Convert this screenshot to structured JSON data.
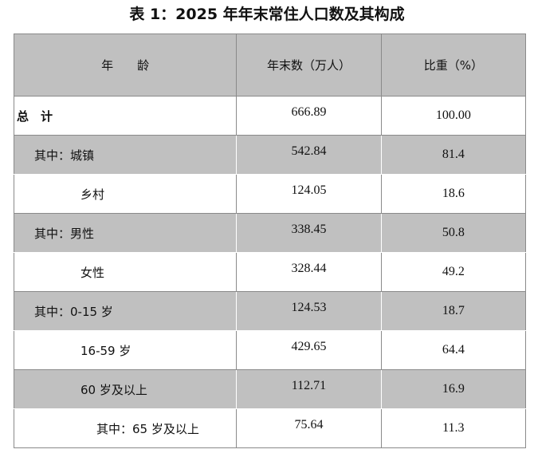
{
  "title": "表 1：2025 年年末常住人口数及其构成",
  "table": {
    "header": [
      "年　　龄",
      "年末数（万人）",
      "比重（%）"
    ],
    "rows": [
      [
        "总　计",
        "666.89",
        "100.00"
      ],
      [
        "其中：城镇",
        "542.84",
        "81.4"
      ],
      [
        "乡村",
        "124.05",
        "18.6"
      ],
      [
        "其中：男性",
        "338.45",
        "50.8"
      ],
      [
        "女性",
        "328.44",
        "49.2"
      ],
      [
        "其中：0-15 岁",
        "124.53",
        "18.7"
      ],
      [
        "16-59 岁",
        "429.65",
        "64.4"
      ],
      [
        "60 岁及以上",
        "112.71",
        "16.9"
      ],
      [
        "其中：65 岁及以上",
        "75.64",
        "11.3"
      ]
    ]
  }
}
